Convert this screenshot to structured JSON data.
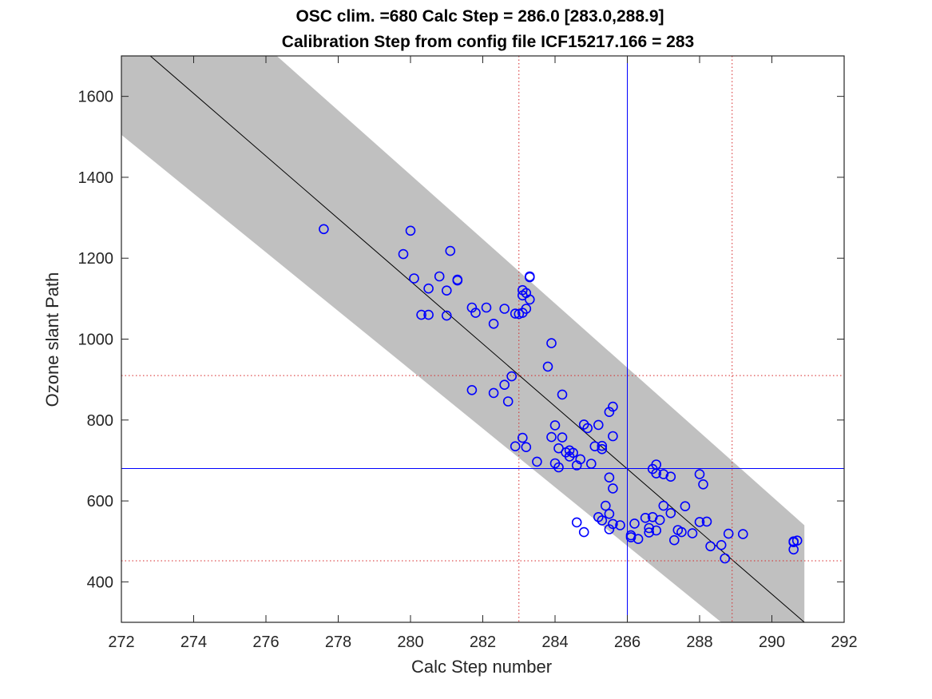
{
  "chart_data": {
    "type": "scatter",
    "title_line1": "OSC clim. =680   Calc Step = 286.0 [283.0,288.9]",
    "title_line2": "Calibration Step from config file ICF15217.166 = 283",
    "xlabel": "Calc Step number",
    "ylabel": "Ozone slant Path",
    "xlim": [
      272,
      292
    ],
    "ylim": [
      300,
      1700
    ],
    "xticks": [
      272,
      274,
      276,
      278,
      280,
      282,
      284,
      286,
      288,
      290,
      292
    ],
    "yticks": [
      400,
      600,
      800,
      1000,
      1200,
      1400,
      1600
    ],
    "grid": false,
    "colors": {
      "points": "#0000ff",
      "band": "#c0c0c0",
      "fit_line": "#000000",
      "ref_lines": "#0000ff",
      "range_lines": "#d62728",
      "axes": "#262626"
    },
    "fit_line": {
      "x": [
        272.8,
        290.9
      ],
      "y": [
        1700,
        300
      ]
    },
    "band": [
      {
        "x": 272.0,
        "y": 1700
      },
      {
        "x": 276.3,
        "y": 1700
      },
      {
        "x": 290.9,
        "y": 540
      },
      {
        "x": 290.9,
        "y": 300
      },
      {
        "x": 288.6,
        "y": 300
      },
      {
        "x": 272.0,
        "y": 1505
      }
    ],
    "reference": {
      "x": 286.0,
      "y": 680
    },
    "range_x": [
      283.0,
      288.9
    ],
    "range_y": [
      452,
      910
    ],
    "points": [
      [
        277.6,
        1272
      ],
      [
        279.8,
        1210
      ],
      [
        280.0,
        1268
      ],
      [
        280.1,
        1150
      ],
      [
        280.3,
        1060
      ],
      [
        280.5,
        1060
      ],
      [
        280.5,
        1125
      ],
      [
        280.8,
        1155
      ],
      [
        281.0,
        1120
      ],
      [
        281.0,
        1058
      ],
      [
        281.1,
        1218
      ],
      [
        281.3,
        1145
      ],
      [
        281.3,
        1147
      ],
      [
        281.7,
        1078
      ],
      [
        281.8,
        1065
      ],
      [
        282.1,
        1078
      ],
      [
        282.3,
        1038
      ],
      [
        282.6,
        1075
      ],
      [
        282.9,
        1063
      ],
      [
        283.0,
        1062
      ],
      [
        283.1,
        1065
      ],
      [
        283.1,
        1108
      ],
      [
        283.1,
        1121
      ],
      [
        283.2,
        1075
      ],
      [
        283.2,
        1114
      ],
      [
        283.3,
        1155
      ],
      [
        283.3,
        1153
      ],
      [
        283.3,
        1098
      ],
      [
        281.7,
        874
      ],
      [
        282.3,
        867
      ],
      [
        282.6,
        887
      ],
      [
        282.7,
        846
      ],
      [
        282.8,
        908
      ],
      [
        283.8,
        932
      ],
      [
        283.9,
        990
      ],
      [
        283.9,
        758
      ],
      [
        284.0,
        693
      ],
      [
        284.0,
        787
      ],
      [
        284.1,
        730
      ],
      [
        284.1,
        683
      ],
      [
        284.2,
        757
      ],
      [
        284.2,
        863
      ],
      [
        284.3,
        720
      ],
      [
        284.4,
        710
      ],
      [
        284.4,
        725
      ],
      [
        284.5,
        719
      ],
      [
        284.6,
        688
      ],
      [
        284.7,
        703
      ],
      [
        284.8,
        789
      ],
      [
        284.9,
        780
      ],
      [
        285.0,
        692
      ],
      [
        285.1,
        735
      ],
      [
        285.2,
        788
      ],
      [
        285.3,
        728
      ],
      [
        285.3,
        736
      ],
      [
        285.5,
        820
      ],
      [
        285.6,
        833
      ],
      [
        285.6,
        760
      ],
      [
        285.5,
        658
      ],
      [
        285.6,
        631
      ],
      [
        282.9,
        735
      ],
      [
        283.1,
        756
      ],
      [
        283.2,
        733
      ],
      [
        283.5,
        697
      ],
      [
        284.6,
        547
      ],
      [
        284.8,
        523
      ],
      [
        285.2,
        560
      ],
      [
        285.3,
        552
      ],
      [
        285.4,
        588
      ],
      [
        285.5,
        568
      ],
      [
        285.5,
        530
      ],
      [
        285.6,
        543
      ],
      [
        285.8,
        540
      ],
      [
        286.1,
        510
      ],
      [
        286.2,
        544
      ],
      [
        286.1,
        515
      ],
      [
        286.3,
        506
      ],
      [
        286.5,
        558
      ],
      [
        286.6,
        533
      ],
      [
        286.6,
        522
      ],
      [
        286.7,
        560
      ],
      [
        286.7,
        679
      ],
      [
        286.8,
        690
      ],
      [
        286.8,
        668
      ],
      [
        286.8,
        527
      ],
      [
        286.9,
        553
      ],
      [
        287.0,
        588
      ],
      [
        287.0,
        666
      ],
      [
        287.2,
        660
      ],
      [
        287.2,
        570
      ],
      [
        287.3,
        503
      ],
      [
        287.4,
        528
      ],
      [
        287.5,
        523
      ],
      [
        287.6,
        587
      ],
      [
        287.8,
        520
      ],
      [
        288.0,
        666
      ],
      [
        288.1,
        641
      ],
      [
        288.0,
        548
      ],
      [
        288.2,
        549
      ],
      [
        288.3,
        488
      ],
      [
        288.6,
        491
      ],
      [
        288.7,
        458
      ],
      [
        288.8,
        519
      ],
      [
        289.2,
        518
      ],
      [
        290.6,
        500
      ],
      [
        290.6,
        498
      ],
      [
        290.7,
        502
      ],
      [
        290.6,
        480
      ]
    ]
  }
}
